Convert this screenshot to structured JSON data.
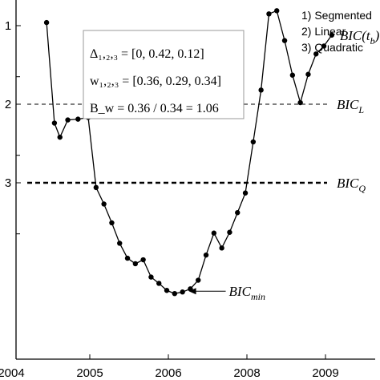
{
  "chart_data": {
    "type": "line",
    "title": "",
    "xlabel": "",
    "ylabel": "",
    "x_ticks": [
      "2004",
      "2005",
      "2006",
      "2008",
      "2009"
    ],
    "y_ticks": [
      {
        "label": "1",
        "rank": 1
      },
      {
        "label": "2",
        "rank": 2
      },
      {
        "label": "3",
        "rank": 3
      }
    ],
    "legend": [
      "1) Segmented",
      "2) Linear",
      "3) Quadratic"
    ],
    "legend_position": "top-right",
    "grid": false,
    "series": [
      {
        "name": "BIC(t_b)",
        "label_main": "BIC(t",
        "label_sub": "b",
        "label_close": ")",
        "x_index": [
          0.45,
          0.55,
          0.62,
          0.72,
          0.85,
          0.98,
          1.08,
          1.18,
          1.28,
          1.38,
          1.48,
          1.58,
          1.68,
          1.78,
          1.88,
          1.98,
          2.08,
          2.18,
          2.28,
          2.38,
          2.48,
          2.58,
          2.68,
          2.78,
          2.88,
          2.98,
          3.08,
          3.18,
          3.28,
          3.38,
          3.48,
          3.58,
          3.68,
          3.78,
          3.88,
          3.98,
          4.08
        ],
        "rank": [
          0.96,
          2.24,
          2.42,
          2.2,
          2.19,
          2.17,
          3.06,
          3.27,
          3.51,
          3.77,
          3.96,
          4.03,
          3.98,
          4.2,
          4.28,
          4.37,
          4.41,
          4.39,
          4.35,
          4.24,
          3.92,
          3.64,
          3.83,
          3.63,
          3.38,
          3.13,
          2.48,
          1.82,
          0.85,
          0.81,
          1.19,
          1.63,
          1.98,
          1.62,
          1.36,
          1.26,
          1.12
        ]
      }
    ],
    "reference_lines": [
      {
        "name": "BIC_L",
        "label_main": "BIC",
        "label_sub": "L",
        "rank": 2,
        "style": "dashed-thin"
      },
      {
        "name": "BIC_Q",
        "label_main": "BIC",
        "label_sub": "Q",
        "rank": 3,
        "style": "dashed-thick"
      }
    ],
    "annotations": [
      {
        "name": "BIC_min",
        "label_main": "BIC",
        "label_sub": "min",
        "x_index": 2.22,
        "rank": 4.38
      }
    ],
    "info_box": {
      "line1": "Δ₁,₂,₃ = [0, 0.42, 0.12]",
      "line2": "w₁,₂,₃ = [0.36, 0.29, 0.34]",
      "line3": "B_w = 0.36 / 0.34 = 1.06"
    }
  }
}
